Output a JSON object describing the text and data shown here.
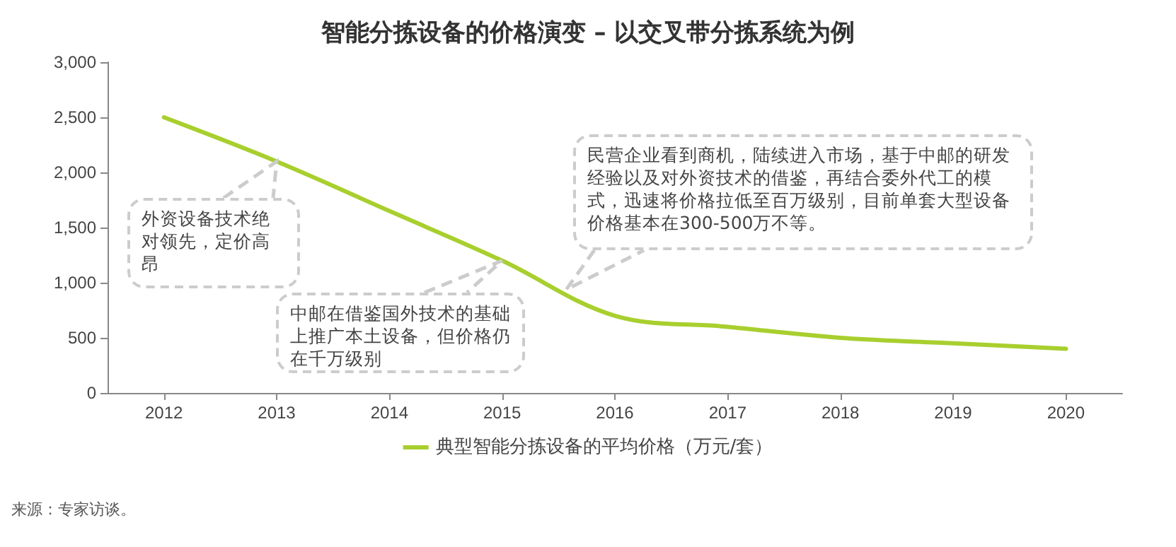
{
  "chart_data": {
    "type": "line",
    "title": "智能分拣设备的价格演变 – 以交叉带分拣系统为例",
    "categories": [
      "2012",
      "2013",
      "2014",
      "2015",
      "2016",
      "2017",
      "2018",
      "2019",
      "2020"
    ],
    "series": [
      {
        "name": "典型智能分拣设备的平均价格（万元/套）",
        "color": "#a8cf2e",
        "values": [
          2500,
          2100,
          1650,
          1200,
          700,
          600,
          500,
          450,
          400
        ]
      }
    ],
    "ylim": [
      0,
      3000
    ],
    "yticks": [
      0,
      500,
      {
        "value": 1000,
        "label": "1,000"
      },
      {
        "value": 1500,
        "label": "1,500"
      },
      {
        "value": 2000,
        "label": "2,000"
      },
      {
        "value": 2500,
        "label": "2,500"
      },
      {
        "value": 3000,
        "label": "3,000"
      }
    ],
    "grid": false,
    "legend": "bottom",
    "marker": "none",
    "line_style": "solid",
    "annotations": [
      {
        "text": "外资设备技术绝对领先，定价高昂",
        "x": "2013",
        "y": 2100
      },
      {
        "text": "中邮在借鉴国外技术的基础上推广本土设备，但价格仍在千万级别",
        "x": "2015",
        "y": 1200
      },
      "民营企业看到商机，陆续进入市场，基于中邮的研发经验以及对外资技术的借鉴，再结合委外代工的模式，迅速将价格拉低至百万级别，目前单套大型设备价格基本在300-500万不等。",
      "来源：专家访谈。"
    ]
  }
}
